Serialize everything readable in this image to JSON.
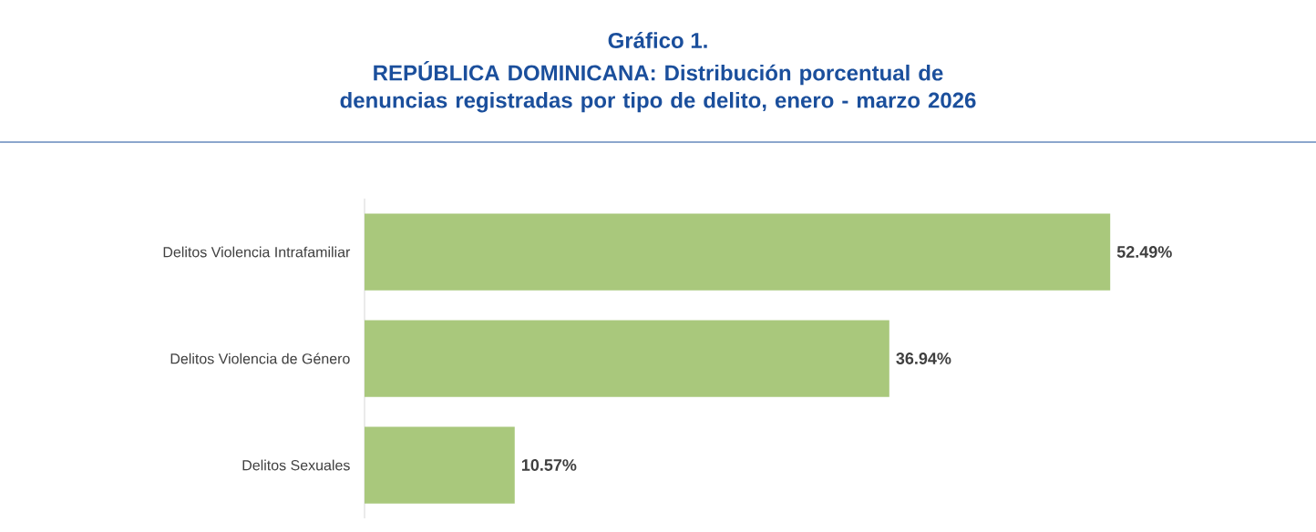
{
  "chart_data": {
    "type": "bar",
    "orientation": "horizontal",
    "title": "Gráfico 1.",
    "subtitle": "REPÚBLICA DOMINICANA: Distribución porcentual de denuncias registradas por tipo de delito, enero - marzo 2026",
    "categories": [
      "Delitos Violencia Intrafamiliar",
      "Delitos Violencia de Género",
      "Delitos Sexuales"
    ],
    "values": [
      52.49,
      36.94,
      10.57
    ],
    "value_labels": [
      "52.49%",
      "36.94%",
      "10.57%"
    ],
    "color": "#a9c87c"
  }
}
